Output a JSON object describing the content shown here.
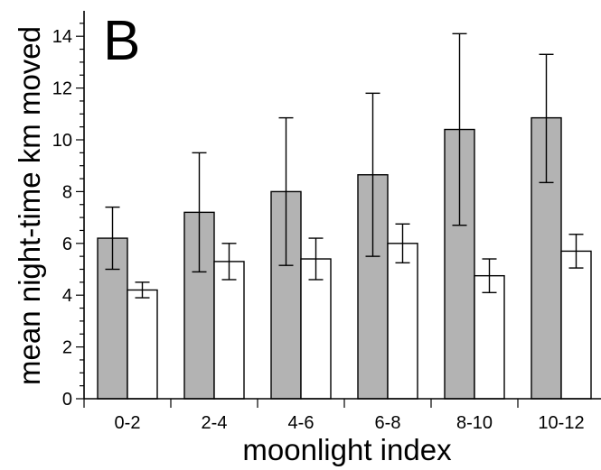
{
  "chart_data": {
    "type": "bar",
    "panel_label": "B",
    "xlabel": "moonlight index",
    "ylabel": "mean night-time km moved",
    "ylim": [
      0,
      15
    ],
    "yticks": [
      0,
      2,
      4,
      6,
      8,
      10,
      12,
      14
    ],
    "yticks_labels": [
      "0",
      "2",
      "4",
      "6",
      "8",
      "10",
      "12",
      "14"
    ],
    "categories": [
      "0-2",
      "2-4",
      "4-6",
      "6-8",
      "8-10",
      "10-12"
    ],
    "series": [
      {
        "fill": "#b3b3b3",
        "values": [
          6.2,
          7.2,
          8.0,
          8.65,
          10.4,
          10.85
        ],
        "err_low": [
          5.0,
          4.9,
          5.15,
          5.5,
          6.7,
          8.35
        ],
        "err_high": [
          7.4,
          9.5,
          10.85,
          11.8,
          14.1,
          13.3
        ]
      },
      {
        "fill": "#ffffff",
        "values": [
          4.2,
          5.3,
          5.4,
          6.0,
          4.75,
          5.7
        ],
        "err_low": [
          3.9,
          4.6,
          4.6,
          5.25,
          4.1,
          5.05
        ],
        "err_high": [
          4.5,
          6.0,
          6.2,
          6.75,
          5.4,
          6.35
        ]
      }
    ],
    "grid": false,
    "legend": "none"
  }
}
